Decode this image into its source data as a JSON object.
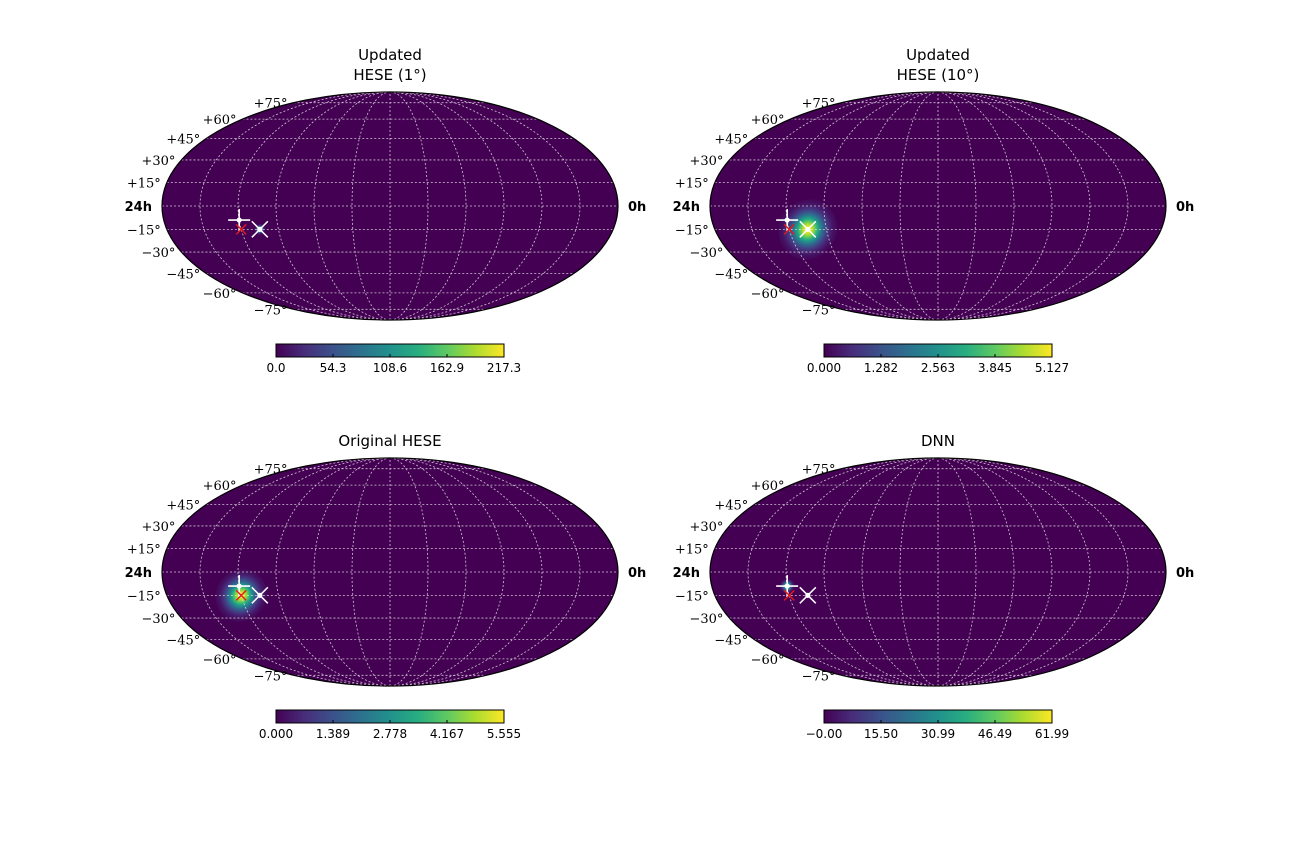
{
  "chart_data": [
    {
      "type": "heatmap",
      "projection": "mollweide",
      "title_lines": [
        "Updated",
        "HESE (1°)"
      ],
      "lat_labels": [
        "+75°",
        "+60°",
        "+45°",
        "+30°",
        "+15°",
        "−15°",
        "−30°",
        "−45°",
        "−60°",
        "−75°"
      ],
      "hour_labels": {
        "left": "24h",
        "right": "0h"
      },
      "grid": true,
      "background_color": "#440154",
      "colormap": "viridis",
      "colorbar": {
        "min": 0.0,
        "max": 217.3,
        "ticks": [
          "0.0",
          "54.3",
          "108.6",
          "162.9",
          "217.3"
        ]
      },
      "hotspot": {
        "ra_deg": 285,
        "dec_deg": -15,
        "peak": 1.0,
        "sigma_ra_deg": 1.5,
        "sigma_dec_deg": 1.5
      },
      "markers": {
        "white_cross": {
          "ra_deg": 300,
          "dec_deg": -9
        },
        "red_x": {
          "ra_deg": 300,
          "dec_deg": -15
        },
        "white_x": {
          "ra_deg": 285,
          "dec_deg": -15
        }
      }
    },
    {
      "type": "heatmap",
      "projection": "mollweide",
      "title_lines": [
        "Updated",
        "HESE (10°)"
      ],
      "lat_labels": [
        "+75°",
        "+60°",
        "+45°",
        "+30°",
        "+15°",
        "−15°",
        "−30°",
        "−45°",
        "−60°",
        "−75°"
      ],
      "hour_labels": {
        "left": "24h",
        "right": "0h"
      },
      "grid": true,
      "background_color": "#440154",
      "colormap": "viridis",
      "colorbar": {
        "min": 0.0,
        "max": 5.127,
        "ticks": [
          "0.000",
          "1.282",
          "2.563",
          "3.845",
          "5.127"
        ]
      },
      "hotspot": {
        "ra_deg": 285,
        "dec_deg": -15,
        "peak": 1.0,
        "sigma_ra_deg": 8,
        "sigma_dec_deg": 8
      },
      "markers": {
        "white_cross": {
          "ra_deg": 300,
          "dec_deg": -9
        },
        "red_x": {
          "ra_deg": 300,
          "dec_deg": -15
        },
        "white_x": {
          "ra_deg": 285,
          "dec_deg": -15
        }
      }
    },
    {
      "type": "heatmap",
      "projection": "mollweide",
      "title_lines": [
        "Original HESE"
      ],
      "lat_labels": [
        "+75°",
        "+60°",
        "+45°",
        "+30°",
        "+15°",
        "−15°",
        "−30°",
        "−45°",
        "−60°",
        "−75°"
      ],
      "hour_labels": {
        "left": "24h",
        "right": "0h"
      },
      "grid": true,
      "background_color": "#440154",
      "colormap": "viridis",
      "colorbar": {
        "min": 0.0,
        "max": 5.555,
        "ticks": [
          "0.000",
          "1.389",
          "2.778",
          "4.167",
          "5.555"
        ]
      },
      "hotspot": {
        "ra_deg": 300,
        "dec_deg": -15,
        "peak": 1.0,
        "sigma_ra_deg": 7,
        "sigma_dec_deg": 7
      },
      "markers": {
        "white_cross": {
          "ra_deg": 300,
          "dec_deg": -9
        },
        "red_x": {
          "ra_deg": 300,
          "dec_deg": -15
        },
        "white_x": {
          "ra_deg": 285,
          "dec_deg": -15
        }
      }
    },
    {
      "type": "heatmap",
      "projection": "mollweide",
      "title_lines": [
        "DNN"
      ],
      "lat_labels": [
        "+75°",
        "+60°",
        "+45°",
        "+30°",
        "+15°",
        "−15°",
        "−30°",
        "−45°",
        "−60°",
        "−75°"
      ],
      "hour_labels": {
        "left": "24h",
        "right": "0h"
      },
      "grid": true,
      "background_color": "#440154",
      "colormap": "viridis",
      "colorbar": {
        "min": 0.0,
        "max": 61.99,
        "ticks": [
          "−0.00",
          "15.50",
          "30.99",
          "46.49",
          "61.99"
        ]
      },
      "hotspot": {
        "ra_deg": 300,
        "dec_deg": -9,
        "peak": 1.0,
        "sigma_ra_deg": 2,
        "sigma_dec_deg": 2
      },
      "markers": {
        "white_cross": {
          "ra_deg": 300,
          "dec_deg": -9
        },
        "red_x": {
          "ra_deg": 300,
          "dec_deg": -15
        },
        "white_x": {
          "ra_deg": 285,
          "dec_deg": -15
        }
      }
    }
  ]
}
